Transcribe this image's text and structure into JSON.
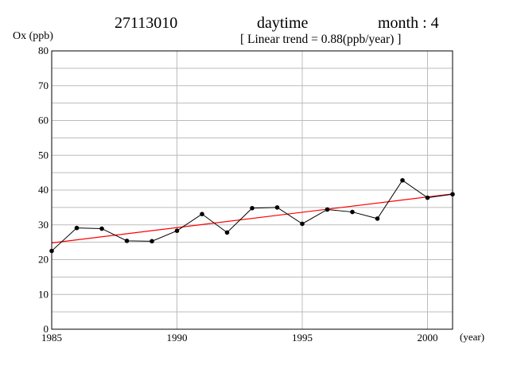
{
  "header": {
    "station": "27113010",
    "period": "daytime",
    "month": "month : 4",
    "trend_label": "[ Linear trend = 0.88(ppb/year) ]"
  },
  "chart_data": {
    "type": "line",
    "ylabel": "Ox (ppb)",
    "xunit": "(year)",
    "xlim": [
      1985,
      2001
    ],
    "ylim": [
      0,
      80
    ],
    "xticks": [
      1985,
      1990,
      1995,
      2000
    ],
    "yticks": [
      0,
      10,
      20,
      30,
      40,
      50,
      60,
      70,
      80
    ],
    "grid": true,
    "series": [
      {
        "color": "#000000",
        "x": [
          1985,
          1986,
          1987,
          1988,
          1989,
          1990,
          1991,
          1992,
          1993,
          1994,
          1995,
          1996,
          1997,
          1998,
          1999,
          2000,
          2001
        ],
        "values": [
          22.5,
          29.1,
          28.9,
          25.4,
          25.3,
          28.3,
          33.1,
          27.8,
          34.8,
          35.0,
          30.3,
          34.4,
          33.7,
          31.8,
          42.8,
          37.8,
          38.8
        ]
      }
    ],
    "trend": {
      "color": "#ff0000",
      "x": [
        1985,
        2001
      ],
      "values": [
        24.8,
        38.9
      ]
    }
  }
}
